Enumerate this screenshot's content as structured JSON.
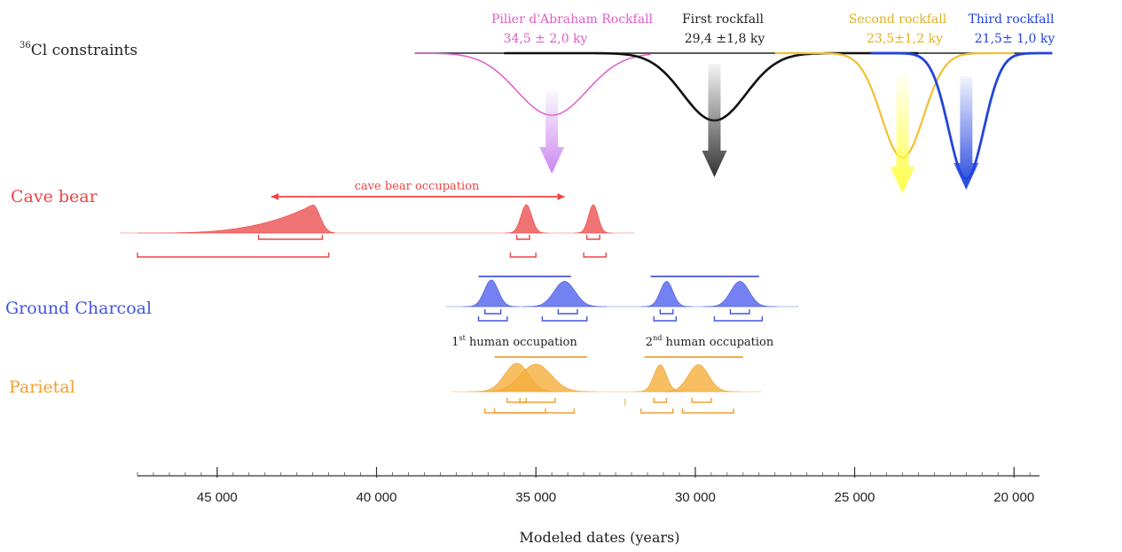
{
  "chart_data": {
    "type": "area",
    "xlabel": "Modeled dates (years)",
    "x_reversed": true,
    "xlim": [
      47500,
      19200
    ],
    "x_ticks": [
      45000,
      40000,
      35000,
      30000,
      25000,
      20000
    ],
    "x_tick_labels": [
      "45 000",
      "40 000",
      "35 000",
      "30 000",
      "25 000",
      "20 000"
    ],
    "minor_tick_step": 500,
    "constraints": {
      "label_super": "36",
      "label_text": "Cl constraints",
      "rockfalls": [
        {
          "name": "Pilier d'Abraham Rockfall",
          "value_label": "34,5 ± 2,0 ky",
          "mean": 34500,
          "sd": 2000,
          "color": "#e05cc8",
          "arrow_color": "#cc88ee",
          "curve_from": 38800,
          "curve_to": 31400
        },
        {
          "name": "First rockfall",
          "value_label": "29,4 ±1,8 ky",
          "mean": 29400,
          "sd": 1800,
          "color": "#111111",
          "arrow_color": "#333333",
          "curve_from": 36000,
          "curve_to": 23000
        },
        {
          "name": "Second rockfall",
          "value_label": "23,5±1,2 ky",
          "mean": 23500,
          "sd": 1200,
          "color": "#f0c030",
          "arrow_color": "#ffff44",
          "curve_from": 27500,
          "curve_to": 20000
        },
        {
          "name": "Third rockfall",
          "value_label": "21,5± 1,0 ky",
          "mean": 21500,
          "sd": 1000,
          "color": "#2244dd",
          "arrow_color": "#2244dd",
          "curve_from": 24500,
          "curve_to": 18800
        }
      ]
    },
    "groups": [
      {
        "name": "Cave bear",
        "color": "#ee4444",
        "fill": "#ee5555",
        "span_label": "cave bear occupation",
        "span": [
          43300,
          34100
        ],
        "distributions": [
          {
            "peak": 42000,
            "skew_from": 47500,
            "to": 41300,
            "height": 1.0,
            "kind": "skewed"
          },
          {
            "peak": 35300,
            "sd": 170,
            "height": 1.0,
            "kind": "normal"
          },
          {
            "peak": 33200,
            "sd": 150,
            "height": 1.0,
            "kind": "normal"
          }
        ],
        "brackets": [
          {
            "from": 43700,
            "to": 41700
          },
          {
            "from": 47500,
            "to": 41500
          },
          {
            "from": 35600,
            "to": 35200
          },
          {
            "from": 35800,
            "to": 35000
          },
          {
            "from": 33400,
            "to": 33000
          },
          {
            "from": 33500,
            "to": 32800
          }
        ]
      },
      {
        "name": "Ground Charcoal",
        "color": "#4455dd",
        "fill": "#5566ee",
        "spans": [
          [
            36800,
            33900
          ],
          [
            31400,
            28000
          ]
        ],
        "distributions": [
          {
            "peak": 36400,
            "sd": 220,
            "height": 1.0,
            "kind": "normal"
          },
          {
            "peak": 34100,
            "sd": 330,
            "height": 0.95,
            "kind": "normal"
          },
          {
            "peak": 30900,
            "sd": 200,
            "height": 0.95,
            "kind": "normal"
          },
          {
            "peak": 28600,
            "sd": 290,
            "height": 0.95,
            "kind": "normal"
          }
        ],
        "brackets": [
          {
            "from": 36600,
            "to": 36100
          },
          {
            "from": 36800,
            "to": 35900
          },
          {
            "from": 34300,
            "to": 33700
          },
          {
            "from": 34800,
            "to": 33400
          },
          {
            "from": 31100,
            "to": 30700
          },
          {
            "from": 31300,
            "to": 30600
          },
          {
            "from": 28900,
            "to": 28300
          },
          {
            "from": 29400,
            "to": 27900
          }
        ],
        "annotations": [
          {
            "ordinal": "1",
            "sup": "st",
            "text": " human occupation",
            "at": 35500
          },
          {
            "ordinal": "2",
            "sup": "nd",
            "text": " human occupation",
            "at": 29200
          }
        ]
      },
      {
        "name": "Parietal",
        "color": "#f0a030",
        "fill": "#f5b040",
        "spans": [
          [
            36300,
            33400
          ],
          [
            31600,
            28500
          ]
        ],
        "distributions": [
          {
            "peak": 35600,
            "sd": 380,
            "height": 1.0,
            "kind": "normal"
          },
          {
            "peak": 35000,
            "sd": 480,
            "height": 0.97,
            "kind": "normal"
          },
          {
            "peak": 31100,
            "sd": 200,
            "height": 0.95,
            "kind": "normal"
          },
          {
            "peak": 29900,
            "sd": 320,
            "height": 0.95,
            "kind": "normal"
          }
        ],
        "brackets": [
          {
            "from": 35900,
            "to": 35300
          },
          {
            "from": 36300,
            "to": 34700
          },
          {
            "from": 35500,
            "to": 34400
          },
          {
            "from": 36600,
            "to": 33800
          },
          {
            "from": 31300,
            "to": 30900
          },
          {
            "from": 31700,
            "to": 30700
          },
          {
            "from": 30100,
            "to": 29500
          },
          {
            "from": 30400,
            "to": 28800
          }
        ]
      }
    ]
  }
}
